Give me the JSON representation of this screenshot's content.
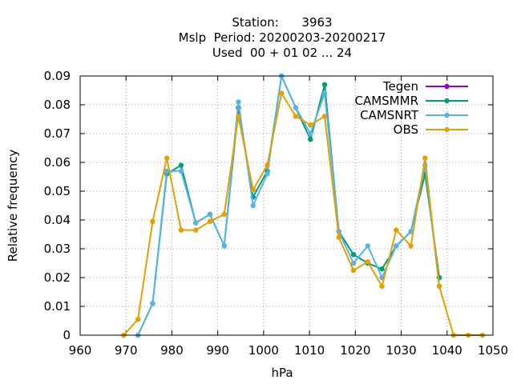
{
  "chart_data": {
    "type": "line",
    "title_lines": [
      "Station:      3963",
      "Mslp  Period: 20200203-20200217",
      "Used  00 + 01 02 ... 24"
    ],
    "xlabel": "hPa",
    "ylabel": "Relative frequency",
    "xlim": [
      960,
      1050
    ],
    "ylim": [
      0,
      0.09
    ],
    "xticks": [
      960,
      970,
      980,
      990,
      1000,
      1010,
      1020,
      1030,
      1040,
      1050
    ],
    "yticks": [
      0,
      0.01,
      0.02,
      0.03,
      0.04,
      0.05,
      0.06,
      0.07,
      0.08,
      0.09
    ],
    "xtick_labels": [
      "960",
      "970",
      "980",
      "990",
      "1000",
      "1010",
      "1020",
      "1030",
      "1040",
      "1050"
    ],
    "ytick_labels": [
      "0",
      "0.01",
      "0.02",
      "0.03",
      "0.04",
      "0.05",
      "0.06",
      "0.07",
      "0.08",
      "0.09"
    ],
    "grid": true,
    "legend_position": "top-right",
    "series": [
      {
        "name": "Tegen",
        "color": "#9400d3",
        "x": [],
        "y": []
      },
      {
        "name": "CAMSMMR",
        "color": "#009e73",
        "x": [
          972.6,
          975.8,
          978.9,
          982.0,
          985.2,
          988.3,
          991.4,
          994.5,
          997.7,
          1000.8,
          1003.9,
          1007.0,
          1010.2,
          1013.3,
          1016.4,
          1019.6,
          1022.7,
          1025.8,
          1028.9,
          1032.1,
          1035.2,
          1038.3
        ],
        "y": [
          0.0,
          0.011,
          0.056,
          0.059,
          0.039,
          0.042,
          0.031,
          0.079,
          0.048,
          0.057,
          0.09,
          0.079,
          0.068,
          0.087,
          0.036,
          0.028,
          0.025,
          0.023,
          0.031,
          0.036,
          0.056,
          0.02
        ]
      },
      {
        "name": "CAMSNRT",
        "color": "#56b4e9",
        "x": [
          972.6,
          975.8,
          978.9,
          982.0,
          985.2,
          988.3,
          991.4,
          994.5,
          997.7,
          1000.8,
          1003.9,
          1007.0,
          1010.2,
          1013.3,
          1016.4,
          1019.6,
          1022.7,
          1025.8,
          1028.9,
          1032.1,
          1035.2,
          1038.3
        ],
        "y": [
          0.0,
          0.011,
          0.057,
          0.057,
          0.039,
          0.042,
          0.031,
          0.081,
          0.045,
          0.056,
          0.09,
          0.079,
          0.07,
          0.084,
          0.036,
          0.025,
          0.031,
          0.02,
          0.031,
          0.036,
          0.059,
          0.017
        ]
      },
      {
        "name": "OBS",
        "color": "#e69f00",
        "x": [
          969.5,
          972.6,
          975.8,
          978.9,
          982.0,
          985.2,
          988.3,
          991.4,
          994.5,
          997.7,
          1000.8,
          1003.9,
          1007.0,
          1010.2,
          1013.3,
          1016.4,
          1019.6,
          1022.7,
          1025.8,
          1028.9,
          1032.1,
          1035.2,
          1038.3,
          1041.4,
          1044.6,
          1047.7
        ],
        "y": [
          0.0,
          0.0055,
          0.0395,
          0.0615,
          0.0365,
          0.0365,
          0.0395,
          0.042,
          0.076,
          0.0505,
          0.059,
          0.084,
          0.076,
          0.073,
          0.076,
          0.034,
          0.0225,
          0.0255,
          0.017,
          0.0365,
          0.031,
          0.0615,
          0.017,
          0.0,
          0.0,
          0.0
        ]
      }
    ]
  }
}
